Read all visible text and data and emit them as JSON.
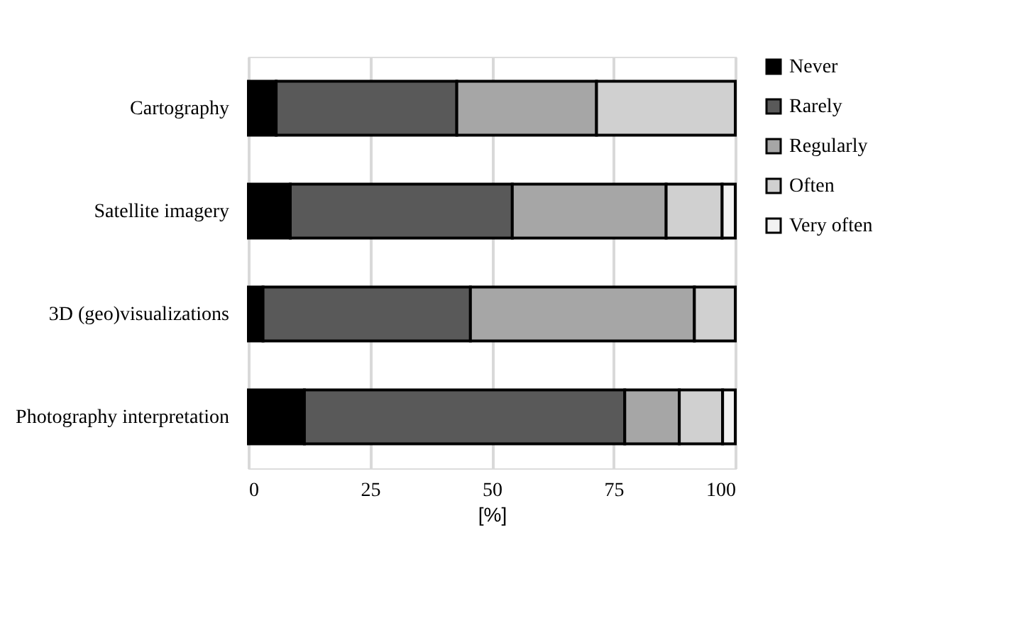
{
  "chart_data": {
    "type": "bar",
    "orientation": "horizontal",
    "stacked": true,
    "categories": [
      "Cartography",
      "Satellite imagery",
      "3D (geo)visualizations",
      "Photography interpretation"
    ],
    "series": [
      {
        "name": "Never",
        "color": "#000000",
        "values": [
          5.7,
          8.6,
          3.0,
          11.5
        ]
      },
      {
        "name": "Rarely",
        "color": "#595959",
        "values": [
          37.1,
          45.6,
          42.6,
          65.8
        ]
      },
      {
        "name": "Regularly",
        "color": "#a6a6a6",
        "values": [
          28.7,
          31.6,
          46.0,
          11.2
        ]
      },
      {
        "name": "Often",
        "color": "#d0d0d0",
        "values": [
          28.5,
          11.5,
          8.4,
          8.9
        ]
      },
      {
        "name": "Very often",
        "color": "#f2f2f2",
        "values": [
          null,
          2.7,
          null,
          2.6
        ]
      }
    ],
    "xlabel": "[%]",
    "xlim": [
      0,
      100
    ],
    "xticks": [
      0,
      25,
      50,
      75,
      100
    ],
    "grid": "x",
    "legend": "right"
  }
}
